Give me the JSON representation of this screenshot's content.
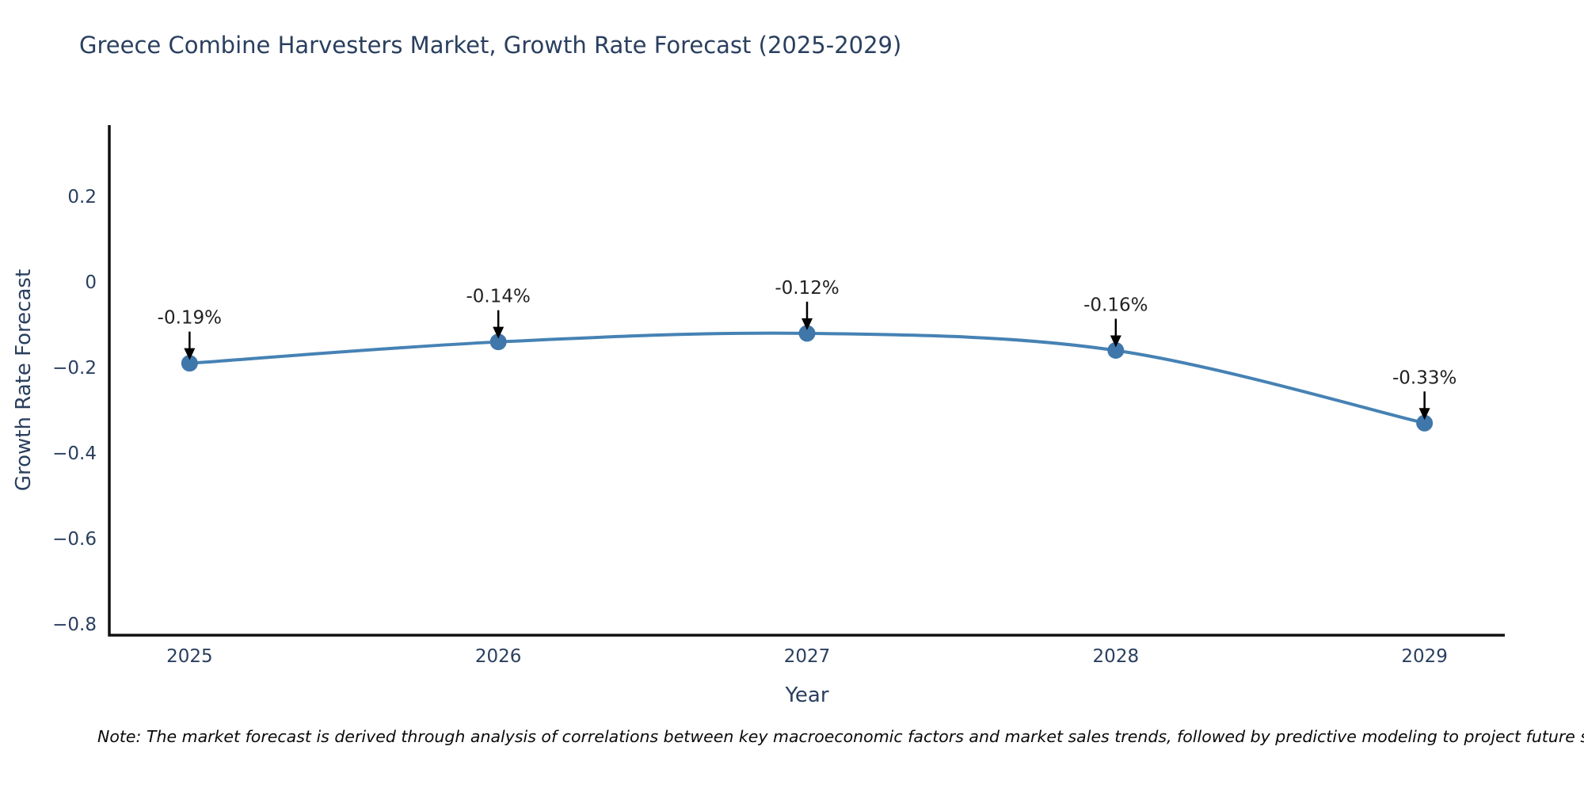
{
  "title": "Greece Combine Harvesters Market, Growth Rate Forecast (2025-2029)",
  "note": "Note: The market forecast is derived through analysis of correlations between key macroeconomic factors and market sales trends, followed by predictive modeling to project future sa",
  "chart_data": {
    "type": "line",
    "title": "Greece Combine Harvesters Market, Growth Rate Forecast (2025-2029)",
    "xlabel": "Year",
    "ylabel": "Growth Rate Forecast",
    "x": [
      2025,
      2026,
      2027,
      2028,
      2029
    ],
    "y": [
      -0.19,
      -0.14,
      -0.12,
      -0.16,
      -0.33
    ],
    "series": [
      {
        "name": "Growth Rate Forecast",
        "values": [
          -0.19,
          -0.14,
          -0.12,
          -0.16,
          -0.33
        ]
      }
    ],
    "point_labels": [
      "-0.19%",
      "-0.14%",
      "-0.12%",
      "-0.16%",
      "-0.33%"
    ],
    "xtick_labels": [
      "2025",
      "2026",
      "2027",
      "2028",
      "2029"
    ],
    "yticks": [
      0.2,
      0,
      -0.2,
      -0.4,
      -0.6,
      -0.8
    ],
    "ytick_labels": [
      "0.2",
      "0",
      "−0.2",
      "−0.4",
      "−0.6",
      "−0.8"
    ],
    "xlim": [
      2024.74,
      2029.26
    ],
    "ylim": [
      -0.826,
      0.367
    ],
    "grid": false,
    "legend": "none",
    "colors": {
      "line": "#4682b4",
      "marker": "#3f77ab",
      "axis": "#111111",
      "tick_label": "#2a3f5f",
      "annotation_text": "#222222",
      "annotation_arrow": "#000000",
      "background": "#ffffff"
    }
  }
}
